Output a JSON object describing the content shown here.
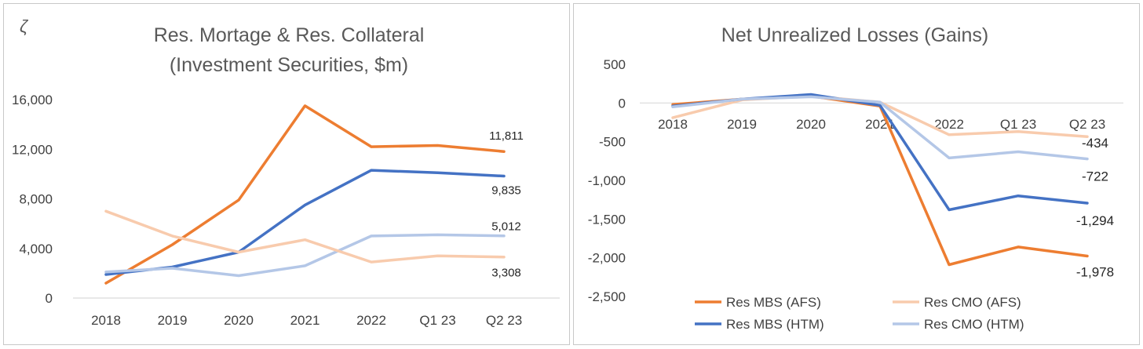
{
  "panel_marker": "ζ",
  "chart_data": [
    {
      "type": "line",
      "title": "Res. Mortage & Res. Collateral",
      "subtitle": "(Investment Securities, $m)",
      "categories": [
        "2018",
        "2019",
        "2020",
        "2021",
        "2022",
        "Q1 23",
        "Q2 23"
      ],
      "ylim": [
        0,
        16000
      ],
      "yticks": [
        0,
        4000,
        8000,
        12000,
        16000
      ],
      "ytick_labels": [
        "0",
        "4,000",
        "8,000",
        "12,000",
        "16,000"
      ],
      "grid": false,
      "series": [
        {
          "key": "res_mbs_afs",
          "color": "#ED7D31",
          "values": [
            1200,
            4300,
            7900,
            15500,
            12200,
            12300,
            11811
          ],
          "end_label": "11,811"
        },
        {
          "key": "res_mbs_htm",
          "color": "#4472C4",
          "values": [
            1900,
            2500,
            3700,
            7500,
            10300,
            10100,
            9835
          ],
          "end_label": "9,835"
        },
        {
          "key": "res_cmo_htm",
          "color": "#B4C7E7",
          "values": [
            2100,
            2400,
            1800,
            2600,
            5000,
            5100,
            5012
          ],
          "end_label": "5,012"
        },
        {
          "key": "res_cmo_afs",
          "color": "#F8CBAD",
          "values": [
            7000,
            5000,
            3700,
            4700,
            2900,
            3400,
            3308
          ],
          "end_label": "3,308"
        }
      ]
    },
    {
      "type": "line",
      "title": "Net Unrealized Losses (Gains)",
      "categories": [
        "2018",
        "2019",
        "2020",
        "2021",
        "2022",
        "Q1 23",
        "Q2 23"
      ],
      "ylim": [
        -2500,
        500
      ],
      "yticks": [
        -2500,
        -2000,
        -1500,
        -1000,
        -500,
        0,
        500
      ],
      "ytick_labels": [
        "-2,500",
        "-2,000",
        "-1,500",
        "-1,000",
        "-500",
        "0",
        "500"
      ],
      "grid": false,
      "legend_position": "bottom",
      "series": [
        {
          "key": "res_mbs_afs",
          "name": "Res MBS (AFS)",
          "color": "#ED7D31",
          "values": [
            -20,
            50,
            90,
            -40,
            -2090,
            -1860,
            -1978
          ],
          "end_label": "-1,978"
        },
        {
          "key": "res_cmo_afs",
          "name": "Res CMO (AFS)",
          "color": "#F8CBAD",
          "values": [
            -190,
            40,
            90,
            10,
            -410,
            -370,
            -434
          ],
          "end_label": "-434"
        },
        {
          "key": "res_mbs_htm",
          "name": "Res MBS (HTM)",
          "color": "#4472C4",
          "values": [
            -40,
            50,
            110,
            -30,
            -1380,
            -1200,
            -1294
          ],
          "end_label": "-1,294"
        },
        {
          "key": "res_cmo_htm",
          "name": "Res CMO (HTM)",
          "color": "#B4C7E7",
          "values": [
            -50,
            50,
            80,
            10,
            -710,
            -630,
            -722
          ],
          "end_label": "-722"
        }
      ]
    }
  ]
}
